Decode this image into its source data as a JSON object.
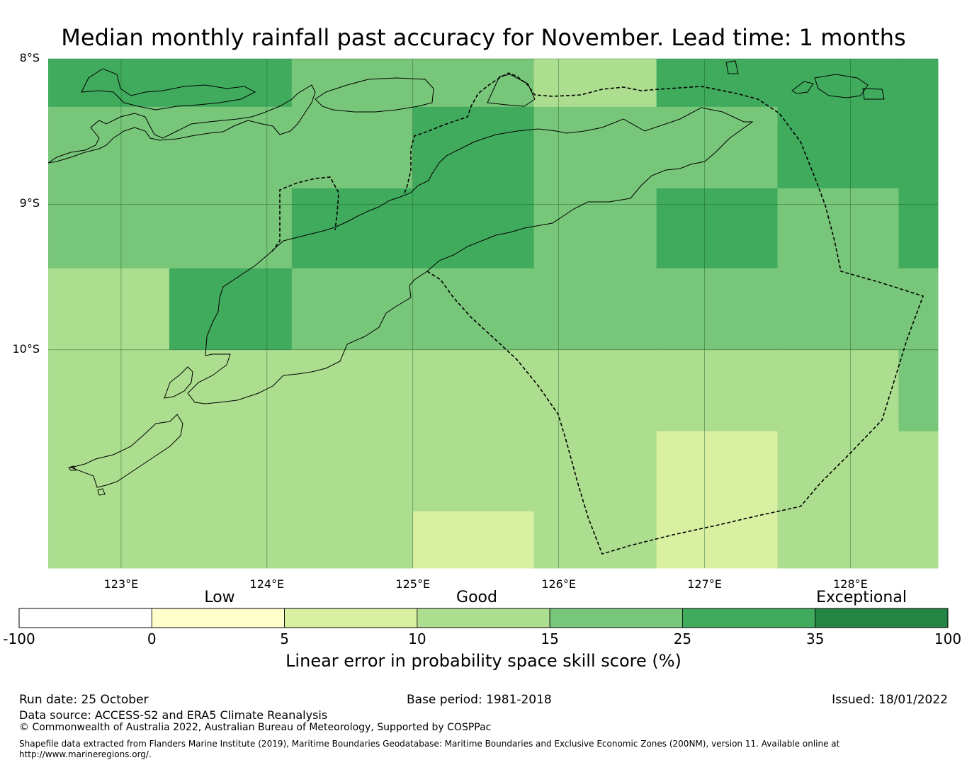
{
  "title": "Median monthly rainfall past accuracy for November. Lead time: 1 months",
  "map": {
    "lat_labels": [
      "8°S",
      "9°S",
      "10°S"
    ],
    "lon_labels": [
      "123°E",
      "124°E",
      "125°E",
      "126°E",
      "127°E",
      "128°E"
    ],
    "lon_values": [
      123,
      124,
      125,
      126,
      127,
      128
    ],
    "lat_values": [
      -8,
      -9,
      -10
    ],
    "lon_range": [
      122.5,
      128.6
    ],
    "lat_range": [
      -11.5,
      -8.0
    ],
    "grid_lons": [
      122.5,
      123.33,
      124.17,
      125.0,
      125.83,
      126.67,
      127.5,
      128.33,
      128.6
    ],
    "grid_lats": [
      -8.0,
      -8.33,
      -8.89,
      -9.44,
      -10.0,
      -10.56,
      -11.11,
      -11.5
    ],
    "skill_grid": [
      [
        35,
        35,
        25,
        25,
        15,
        35,
        35,
        35
      ],
      [
        25,
        25,
        25,
        35,
        25,
        25,
        35,
        35
      ],
      [
        25,
        25,
        35,
        35,
        25,
        35,
        25,
        35
      ],
      [
        15,
        35,
        25,
        25,
        25,
        25,
        25,
        25
      ],
      [
        15,
        15,
        15,
        15,
        15,
        15,
        15,
        25
      ],
      [
        15,
        15,
        15,
        15,
        15,
        10,
        15,
        15
      ],
      [
        15,
        15,
        15,
        10,
        15,
        10,
        15,
        15
      ]
    ]
  },
  "colorbar": {
    "bins": [
      {
        "from": -100,
        "to": 0,
        "color": "#ffffff"
      },
      {
        "from": 0,
        "to": 5,
        "color": "#ffffcc"
      },
      {
        "from": 5,
        "to": 10,
        "color": "#d9f0a3"
      },
      {
        "from": 10,
        "to": 15,
        "color": "#addd8e"
      },
      {
        "from": 15,
        "to": 25,
        "color": "#78c679"
      },
      {
        "from": 25,
        "to": 35,
        "color": "#41ab5d"
      },
      {
        "from": 35,
        "to": 100,
        "color": "#238443"
      }
    ],
    "ticks": [
      "-100",
      "0",
      "5",
      "10",
      "15",
      "25",
      "35",
      "100"
    ],
    "categories": [
      "Low",
      "Good",
      "Exceptional"
    ],
    "label": "Linear error in probability space skill score (%)"
  },
  "footer": {
    "run_date": "Run date: 25 October",
    "base_period": "Base period: 1981-2018",
    "issued": "Issued: 18/01/2022",
    "data_source": "Data source: ACCESS-S2 and ERA5 Climate Reanalysis",
    "copyright": "© Commonwealth of Australia 2022, Australian Bureau of Meteorology, Supported by COSPPac",
    "shapefile": "Shapefile data extracted from Flanders Marine Institute (2019), Maritime Boundaries Geodatabase: Maritime Boundaries and Exclusive Economic Zones (200NM), version 11. Available online at http://www.marineregions.org/."
  }
}
